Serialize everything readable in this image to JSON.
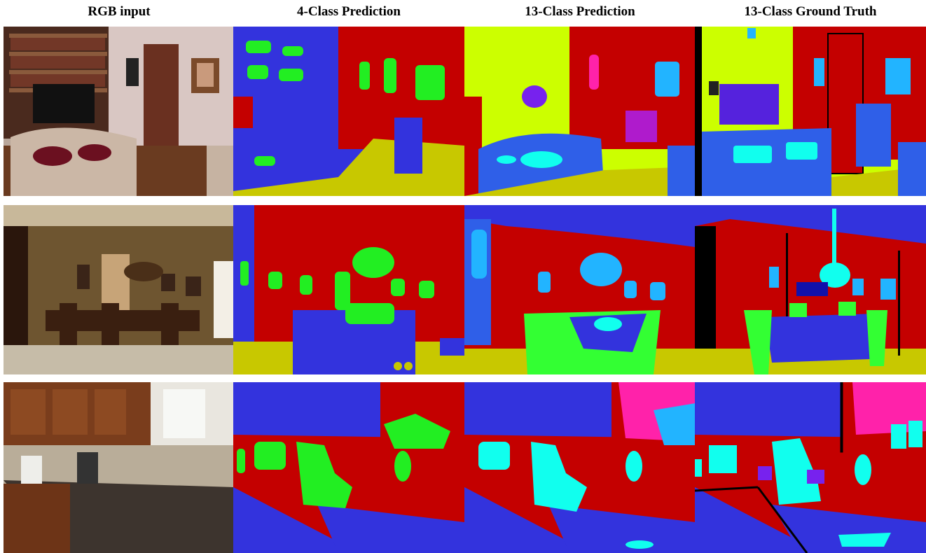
{
  "headers": {
    "rgb": "RGB input",
    "pred4": "4-Class Prediction",
    "pred13": "13-Class Prediction",
    "gt13": "13-Class Ground Truth"
  },
  "class_colors": {
    "wall": "#c40000",
    "ceiling_or_bed": "#3333dd",
    "floor": "#c8c800",
    "furniture_4class": "#22ee22",
    "chair": "#33ff33",
    "sofa_bed": "#2f5fe8",
    "picture_object": "#22b4ff",
    "objects_cyan": "#11ffee",
    "pink": "#ff22aa",
    "purple": "#7722ee",
    "yellow_green": "#ccff00",
    "unlabeled": "#000000"
  },
  "rows": [
    {
      "scene": "living-room"
    },
    {
      "scene": "dining-room"
    },
    {
      "scene": "kitchen"
    }
  ]
}
